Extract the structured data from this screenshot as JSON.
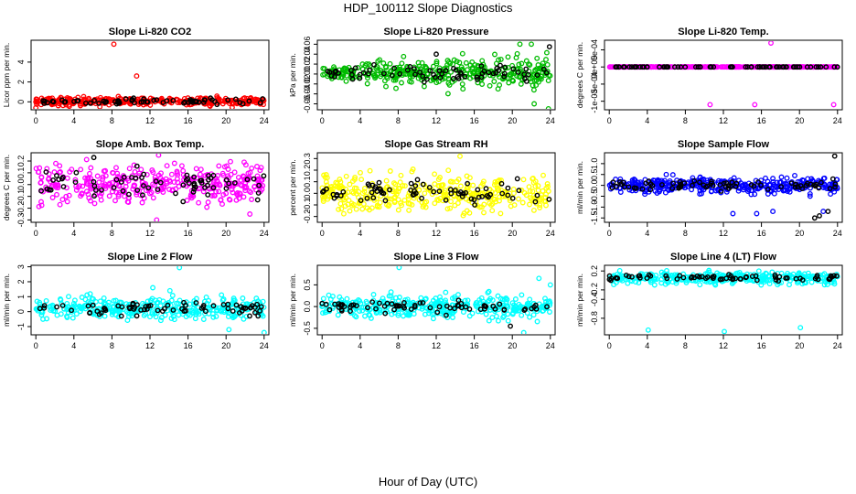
{
  "figure": {
    "title": "HDP_100112  Slope Diagnostics",
    "xlabel": "Hour of Day (UTC)"
  },
  "colors": {
    "li820": "#ff0000",
    "pressure": "#00bb00",
    "temp": "#ff00ff",
    "rh": "#ffff00",
    "flow": "#0000ff",
    "line": "#00ffff",
    "marker": "#000000"
  },
  "chart_data": [
    {
      "type": "scatter",
      "title": "Slope Li-820 CO2",
      "ylabel": "Licor ppm per min.",
      "color": "#ff0000",
      "xlim": [
        -0.5,
        24.5
      ],
      "ylim": [
        -0.8,
        6.2
      ],
      "xticks": [
        0,
        4,
        8,
        12,
        16,
        20,
        24
      ],
      "yticks": [
        0,
        2,
        4
      ],
      "yticklabels": [
        "0",
        "2",
        "4"
      ],
      "noise": {
        "center": 0.05,
        "sd": 0.2,
        "min": -0.6,
        "max": 0.6
      },
      "outliers": [
        {
          "x": 8.2,
          "y": 5.8
        },
        {
          "x": 10.6,
          "y": 2.6
        },
        {
          "x": 0.0,
          "y": -0.6
        }
      ],
      "black_outliers": [],
      "axis_side": "left"
    },
    {
      "type": "scatter",
      "title": "Slope Li-820 Pressure",
      "ylabel": "kPa per min.",
      "color": "#00bb00",
      "xlim": [
        -0.5,
        24.5
      ],
      "ylim": [
        -0.072,
        0.068
      ],
      "xticks": [
        0,
        4,
        8,
        12,
        16,
        20,
        24
      ],
      "yticks": [
        -0.06,
        -0.04,
        -0.02,
        0.0,
        0.02,
        0.04,
        0.06
      ],
      "yticklabels": [
        "-0.06",
        "-0.04",
        "-0.02",
        "0.00",
        "0.02",
        "0.04",
        "0.06"
      ],
      "noise": {
        "center": 0.003,
        "sd": 0.008,
        "min": -0.03,
        "max": 0.03
      },
      "noise_growth": 2.4,
      "outliers": [
        {
          "x": 20.8,
          "y": 0.06
        },
        {
          "x": 22.0,
          "y": 0.06
        },
        {
          "x": 22.3,
          "y": -0.06
        },
        {
          "x": 18.5,
          "y": -0.03
        },
        {
          "x": 23.8,
          "y": -0.07
        }
      ],
      "black_outliers": [
        {
          "x": 12.0,
          "y": 0.04
        },
        {
          "x": 23.9,
          "y": 0.055
        }
      ],
      "axis_side": "left"
    },
    {
      "type": "scatter",
      "title": "Slope Li-820 Temp.",
      "ylabel": "degrees C per min.",
      "color": "#ff00ff",
      "xlim": [
        -0.5,
        24.5
      ],
      "ylim": [
        -0.00125,
        0.00078
      ],
      "xticks": [
        0,
        4,
        8,
        12,
        16,
        20,
        24
      ],
      "yticks": [
        -0.001,
        -0.0005,
        0.0,
        0.0005
      ],
      "yticklabels": [
        "-1e-03",
        "-5e-04",
        "0e+00",
        "5e-04"
      ],
      "noise": {
        "center": 0.0,
        "sd": 0.0,
        "min": 0.0,
        "max": 0.0
      },
      "outliers": [
        {
          "x": 17.0,
          "y": 0.0007
        },
        {
          "x": 10.6,
          "y": -0.0011
        },
        {
          "x": 15.3,
          "y": -0.0011
        },
        {
          "x": 23.6,
          "y": -0.0011
        }
      ],
      "black_outliers": [],
      "axis_side": "right"
    },
    {
      "type": "scatter",
      "title": "Slope Amb. Box Temp.",
      "ylabel": "degrees C per min.",
      "color": "#ff00ff",
      "xlim": [
        -0.5,
        24.5
      ],
      "ylim": [
        -0.32,
        0.27
      ],
      "xticks": [
        0,
        4,
        8,
        12,
        16,
        20,
        24
      ],
      "yticks": [
        -0.3,
        -0.2,
        -0.1,
        0.0,
        0.1,
        0.2
      ],
      "yticklabels": [
        "-0.3",
        "-0.2",
        "-0.1",
        "0.0",
        "0.1",
        "0.2"
      ],
      "noise": {
        "center": 0.0,
        "sd": 0.08,
        "min": -0.22,
        "max": 0.22
      },
      "outliers": [
        {
          "x": 12.9,
          "y": 0.25
        },
        {
          "x": 12.7,
          "y": -0.3
        },
        {
          "x": 22.5,
          "y": -0.25
        }
      ],
      "black_outliers": [
        {
          "x": 6.1,
          "y": 0.23
        }
      ],
      "axis_side": "left"
    },
    {
      "type": "scatter",
      "title": "Slope Gas Stream RH",
      "ylabel": "percent per min.",
      "color": "#ffff00",
      "xlim": [
        -0.5,
        24.5
      ],
      "ylim": [
        -0.25,
        0.35
      ],
      "xticks": [
        0,
        4,
        8,
        12,
        16,
        20,
        24
      ],
      "yticks": [
        -0.2,
        -0.1,
        0.0,
        0.1,
        0.2,
        0.3
      ],
      "yticklabels": [
        "-0.2",
        "-0.1",
        "0.0",
        "0.1",
        "0.2",
        "0.3"
      ],
      "noise": {
        "center": 0.0,
        "sd": 0.08,
        "min": -0.22,
        "max": 0.22
      },
      "outliers": [
        {
          "x": 14.5,
          "y": 0.32
        }
      ],
      "black_outliers": [],
      "axis_side": "left"
    },
    {
      "type": "scatter",
      "title": "Slope Sample Flow",
      "ylabel": "ml/min per min.",
      "color": "#0000ff",
      "xlim": [
        -0.5,
        24.5
      ],
      "ylim": [
        -1.7,
        1.5
      ],
      "xticks": [
        0,
        4,
        8,
        12,
        16,
        20,
        24
      ],
      "yticks": [
        -1.5,
        -1.0,
        -0.5,
        0.0,
        0.5,
        1.0
      ],
      "yticklabels": [
        "-1.5",
        "-1.0",
        "-0.5",
        "0.0",
        "0.5",
        "1.0"
      ],
      "noise": {
        "center": 0.0,
        "sd": 0.18,
        "min": -0.55,
        "max": 0.55
      },
      "outliers": [
        {
          "x": 17.2,
          "y": -1.2
        },
        {
          "x": 15.5,
          "y": -1.3
        },
        {
          "x": 22.5,
          "y": -1.2
        },
        {
          "x": 13.0,
          "y": -1.3
        },
        {
          "x": 19.5,
          "y": 0.45
        }
      ],
      "black_outliers": [
        {
          "x": 23.7,
          "y": 1.35
        },
        {
          "x": 21.6,
          "y": -1.5
        },
        {
          "x": 22.1,
          "y": -1.4
        },
        {
          "x": 23.0,
          "y": -1.2
        }
      ],
      "axis_side": "right"
    },
    {
      "type": "scatter",
      "title": "Slope Line 2 Flow",
      "ylabel": "ml/min per min.",
      "color": "#00ffff",
      "xlim": [
        -0.5,
        24.5
      ],
      "ylim": [
        -1.55,
        3.1
      ],
      "xticks": [
        0,
        4,
        8,
        12,
        16,
        20,
        24
      ],
      "yticks": [
        -1,
        0,
        1,
        2,
        3
      ],
      "yticklabels": [
        "-1",
        "0",
        "1",
        "2",
        "3"
      ],
      "noise": {
        "center": 0.2,
        "sd": 0.35,
        "min": -0.7,
        "max": 1.2
      },
      "outliers": [
        {
          "x": 15.1,
          "y": 2.95
        },
        {
          "x": 20.3,
          "y": -1.2
        },
        {
          "x": 24.0,
          "y": -1.4
        },
        {
          "x": 12.3,
          "y": 1.6
        },
        {
          "x": 14.1,
          "y": 1.4
        }
      ],
      "black_outliers": [],
      "axis_side": "left"
    },
    {
      "type": "scatter",
      "title": "Slope Line 3 Flow",
      "ylabel": "ml/min per min.",
      "color": "#00ffff",
      "xlim": [
        -0.5,
        24.5
      ],
      "ylim": [
        -0.65,
        0.95
      ],
      "xticks": [
        0,
        4,
        8,
        12,
        16,
        20,
        24
      ],
      "yticks": [
        -0.5,
        0.0,
        0.5
      ],
      "yticklabels": [
        "-0.5",
        "0.0",
        "0.5"
      ],
      "noise": {
        "center": 0.0,
        "sd": 0.12,
        "min": -0.35,
        "max": 0.35
      },
      "outliers": [
        {
          "x": 8.1,
          "y": 0.9
        },
        {
          "x": 22.8,
          "y": 0.65
        },
        {
          "x": 21.2,
          "y": -0.6
        },
        {
          "x": 24.0,
          "y": 0.5
        }
      ],
      "black_outliers": [
        {
          "x": 19.8,
          "y": -0.45
        }
      ],
      "axis_side": "left"
    },
    {
      "type": "scatter",
      "title": "Slope Line 4 (LT) Flow",
      "ylabel": "ml/min per min.",
      "color": "#00ffff",
      "xlim": [
        -0.5,
        24.5
      ],
      "ylim": [
        -1.15,
        0.32
      ],
      "xticks": [
        0,
        4,
        8,
        12,
        16,
        20,
        24
      ],
      "yticks": [
        -0.8,
        -0.4,
        -0.2,
        0.2
      ],
      "yticklabels": [
        "-0.8",
        "-0.4",
        "-0.2",
        "0.2"
      ],
      "noise": {
        "center": 0.05,
        "sd": 0.06,
        "min": -0.1,
        "max": 0.22
      },
      "outliers": [
        {
          "x": 4.1,
          "y": -1.05
        },
        {
          "x": 12.1,
          "y": -1.08
        },
        {
          "x": 20.1,
          "y": -1.0
        }
      ],
      "black_outliers": [],
      "axis_side": "right"
    }
  ]
}
